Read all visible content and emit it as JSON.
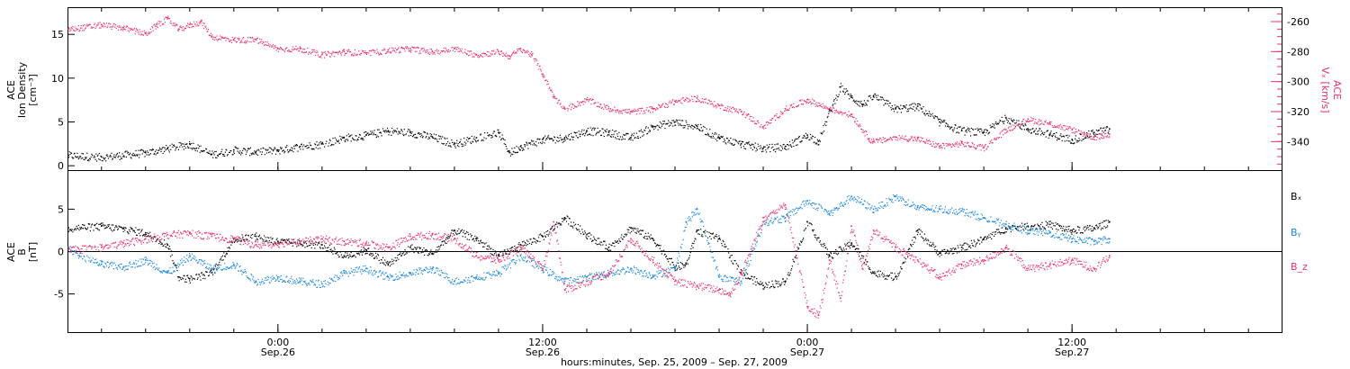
{
  "colors": {
    "black": "#000000",
    "pink": "#e8336a",
    "blue": "#1a86e0"
  },
  "time_axis": {
    "label": "hours:minutes, Sep. 25, 2009 – Sep. 27, 2009",
    "range_hours": [
      -9.5,
      45.5
    ],
    "ticks": [
      {
        "hour": 0,
        "top": "0:00",
        "bottom": "Sep.26"
      },
      {
        "hour": 12,
        "top": "12:00",
        "bottom": "Sep.26"
      },
      {
        "hour": 24,
        "top": "0:00",
        "bottom": "Sep.27"
      },
      {
        "hour": 36,
        "top": "12:00",
        "bottom": "Sep.27"
      }
    ]
  },
  "chart_data": [
    {
      "type": "scatter",
      "panel": "top",
      "grid": false,
      "x_unit": "hours from 2009-09-26 00:00 UT",
      "left_axis": {
        "label_lines": [
          "ACE",
          "Ion Density",
          "[cm⁻³]"
        ],
        "ylim": [
          -0.5,
          18
        ],
        "ticks": [
          0,
          5,
          10,
          15
        ]
      },
      "right_axis": {
        "label_lines": [
          "ACE",
          "Vₓ [km/s]"
        ],
        "ylim": [
          -359,
          -251
        ],
        "ticks": [
          -260,
          -280,
          -300,
          -320,
          -340
        ]
      },
      "series": [
        {
          "color_key": "black",
          "axis": "left",
          "x": [
            -9.5,
            -8,
            -6,
            -5,
            -4,
            -3,
            -2,
            -1,
            0,
            1,
            2,
            3,
            4,
            5,
            6,
            7,
            8,
            9,
            10,
            10.5,
            11,
            12,
            13,
            14,
            15,
            16,
            17,
            18,
            19,
            20,
            21,
            22,
            23,
            24,
            24.5,
            25,
            25.5,
            26,
            26.5,
            27,
            28,
            29,
            30,
            31,
            32,
            33,
            34,
            35,
            36,
            37,
            37.7
          ],
          "y": [
            1.2,
            1,
            1.5,
            2,
            2.5,
            1.3,
            1.8,
            1.6,
            1.8,
            2.2,
            2.5,
            3.2,
            3.5,
            4,
            3.8,
            3.3,
            2.5,
            3.2,
            3.8,
            1.5,
            2.2,
            3,
            3.2,
            4,
            3.8,
            3.2,
            4.5,
            5,
            4.5,
            3.2,
            2.5,
            2,
            2.2,
            3.5,
            2.8,
            6.2,
            9,
            7.8,
            7,
            8,
            6.5,
            6.8,
            5,
            4,
            3.8,
            5.5,
            4.2,
            3.6,
            3,
            3.8,
            4.2
          ]
        },
        {
          "color_key": "pink",
          "axis": "right",
          "x": [
            -9.5,
            -8,
            -7,
            -6,
            -5.5,
            -5,
            -4.5,
            -4,
            -3.5,
            -3,
            -2,
            -1,
            0,
            1,
            2,
            3,
            4,
            5,
            6,
            7,
            8,
            9,
            10,
            10.5,
            11,
            11.5,
            12,
            12.5,
            13,
            14,
            15,
            16,
            17,
            18,
            19,
            20,
            21,
            22,
            23,
            24,
            25,
            26,
            26.8,
            27,
            28,
            29,
            30,
            31,
            32,
            33,
            34,
            35,
            36,
            37,
            37.7
          ],
          "y": [
            -265,
            -262,
            -264,
            -268,
            -262,
            -258,
            -265,
            -262,
            -260,
            -270,
            -272,
            -272,
            -278,
            -278,
            -282,
            -280,
            -281,
            -279,
            -278,
            -280,
            -278,
            -282,
            -280,
            -283,
            -278,
            -282,
            -295,
            -310,
            -318,
            -312,
            -318,
            -320,
            -318,
            -313,
            -311,
            -316,
            -320,
            -330,
            -318,
            -312,
            -318,
            -322,
            -338,
            -340,
            -337,
            -338,
            -343,
            -341,
            -344,
            -332,
            -325,
            -328,
            -332,
            -337,
            -335
          ]
        }
      ]
    },
    {
      "type": "scatter",
      "panel": "bottom",
      "grid": false,
      "x_unit": "hours from 2009-09-26 00:00 UT",
      "left_axis": {
        "label_lines": [
          "ACE",
          "B",
          "[nT]"
        ],
        "ylim": [
          -9.5,
          9.5
        ],
        "ticks": [
          5,
          0,
          -5
        ]
      },
      "zero_line": true,
      "series": [
        {
          "name": "Bₓ",
          "color_key": "black",
          "x": [
            -9.5,
            -8,
            -7,
            -6,
            -5,
            -4.5,
            -4,
            -3,
            -2,
            -1,
            0,
            1,
            2,
            3,
            4,
            5,
            6,
            7,
            8,
            9,
            10,
            11,
            12,
            13,
            14,
            15,
            16,
            17,
            18,
            18.5,
            19,
            20,
            21,
            22,
            23,
            24,
            25,
            26,
            27,
            28,
            29,
            30,
            31,
            32,
            33,
            34,
            35,
            36,
            37,
            37.7
          ],
          "y": [
            2.8,
            3,
            2.7,
            2.2,
            0.8,
            -3,
            -3.2,
            -2.5,
            1.5,
            1.8,
            1.2,
            1,
            0.8,
            -0.5,
            0.2,
            -1.5,
            0.5,
            -0.2,
            2.5,
            1.5,
            -0.5,
            0.8,
            1.8,
            4,
            2,
            0.5,
            2.8,
            1.5,
            -1.8,
            -1.5,
            2.5,
            1.5,
            -2.5,
            -4,
            -3.5,
            3.5,
            -0.5,
            1,
            -2.5,
            -3,
            2.5,
            -0.2,
            0.5,
            1.5,
            2.8,
            3,
            3.2,
            2.5,
            2.8,
            3.5
          ]
        },
        {
          "name": "Bᵧ",
          "color_key": "blue",
          "x": [
            -9.5,
            -9,
            -8,
            -7,
            -6,
            -5,
            -4,
            -3,
            -2,
            -1,
            0,
            1,
            2,
            3,
            4,
            5,
            6,
            7,
            8,
            9,
            10,
            11,
            12,
            13,
            14,
            15,
            16,
            17,
            18,
            18.5,
            19,
            20,
            21,
            22,
            23,
            24,
            25,
            26,
            27,
            28,
            29,
            30,
            31,
            32,
            33,
            34,
            35,
            36,
            37,
            37.7
          ],
          "y": [
            0.5,
            -0.5,
            -1.5,
            -1.8,
            -1,
            -2.5,
            -0.5,
            -2,
            -1.5,
            -3.5,
            -3,
            -3.5,
            -3.8,
            -2.5,
            -2,
            -3,
            -2.5,
            -2,
            -3.5,
            -3,
            -2.5,
            -0.5,
            -2,
            -3.5,
            -3,
            -2.5,
            -2,
            -2.8,
            -2,
            3.5,
            5,
            -3,
            -3.5,
            3.5,
            4,
            6,
            4.5,
            6.5,
            5,
            6.5,
            5.2,
            5,
            4.8,
            4,
            3.2,
            2.5,
            2.2,
            1.5,
            1.2,
            1.5
          ]
        },
        {
          "name": "B_z",
          "color_key": "pink",
          "x": [
            -9.5,
            -8,
            -7,
            -6,
            -5,
            -4,
            -3,
            -2,
            -1,
            0,
            1,
            2,
            3,
            4,
            5,
            6,
            7,
            8,
            9,
            10,
            11,
            12,
            12.5,
            13,
            14,
            15,
            16,
            17,
            18,
            19,
            20,
            20.5,
            21,
            22,
            23,
            24,
            24.5,
            25,
            25.5,
            26,
            26.5,
            27,
            28,
            29,
            30,
            31,
            32,
            33,
            34,
            35,
            36,
            37,
            37.7
          ],
          "y": [
            0.2,
            0.5,
            1,
            1.5,
            2,
            2.2,
            1.8,
            1.5,
            0.8,
            1,
            1.2,
            1.5,
            1.2,
            1,
            0.5,
            1.8,
            2,
            1.5,
            -0.5,
            -1,
            0.5,
            -2,
            3.5,
            -4.5,
            -3.5,
            -2.5,
            1.5,
            -1,
            -3.5,
            -4,
            -4.5,
            -5,
            -2.5,
            4,
            5.5,
            -6.5,
            -7.5,
            -1,
            -5.5,
            3,
            -2,
            2.5,
            0.5,
            -1,
            -3,
            -1.5,
            -1,
            0.5,
            -2,
            -1.5,
            -1,
            -2,
            -0.5
          ]
        }
      ]
    }
  ]
}
